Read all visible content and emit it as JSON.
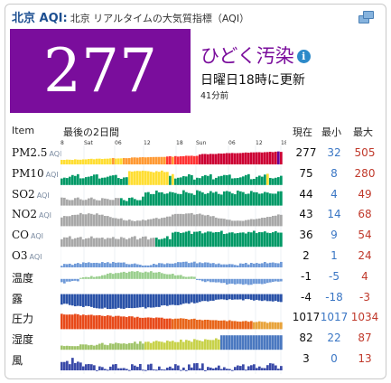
{
  "header": {
    "city": "北京 AQI:",
    "description": "北京 リアルタイムの大気質指標（AQI）"
  },
  "aqi": {
    "value": "277",
    "level": "ひどく汚染",
    "updated": "日曜日18時に更新",
    "ago": "41分前",
    "color": "#7a0d9c"
  },
  "columns": {
    "item": "Item",
    "period": "最後の2日間",
    "current": "現在",
    "min": "最小",
    "max": "最大"
  },
  "axis": {
    "ticks": [
      "8",
      "Sat",
      "06",
      "12",
      "18",
      "Sun",
      "06",
      "12",
      "18"
    ]
  },
  "rows": [
    {
      "name": "PM2.5",
      "sub": "AQI",
      "current": "277",
      "min": "32",
      "max": "505"
    },
    {
      "name": "PM10",
      "sub": "AQI",
      "current": "75",
      "min": "8",
      "max": "280"
    },
    {
      "name": "SO2",
      "sub": "AQI",
      "current": "44",
      "min": "4",
      "max": "49"
    },
    {
      "name": "NO2",
      "sub": "AQI",
      "current": "43",
      "min": "14",
      "max": "68"
    },
    {
      "name": "CO",
      "sub": "AQI",
      "current": "36",
      "min": "9",
      "max": "54"
    },
    {
      "name": "O3",
      "sub": "AQI",
      "current": "2",
      "min": "1",
      "max": "24"
    },
    {
      "name": "温度",
      "sub": "",
      "current": "-1",
      "min": "-5",
      "max": "4"
    },
    {
      "name": "露",
      "sub": "",
      "current": "-4",
      "min": "-18",
      "max": "-3"
    },
    {
      "name": "圧力",
      "sub": "",
      "current": "1017",
      "min": "1017",
      "max": "1034"
    },
    {
      "name": "湿度",
      "sub": "",
      "current": "82",
      "min": "22",
      "max": "87"
    },
    {
      "name": "風",
      "sub": "",
      "current": "3",
      "min": "0",
      "max": "13"
    }
  ],
  "colors": {
    "good": "#009966",
    "moderate": "#ffde33",
    "sensitive": "#ff9933",
    "unhealthy": "#cc0033",
    "very_unhealthy": "#660099",
    "gray": "#a8a8a8",
    "temp": "#6f9ad8",
    "dew": "#2a52a8",
    "humidity": "#4a78c0",
    "wind": "#3a4aa8"
  }
}
